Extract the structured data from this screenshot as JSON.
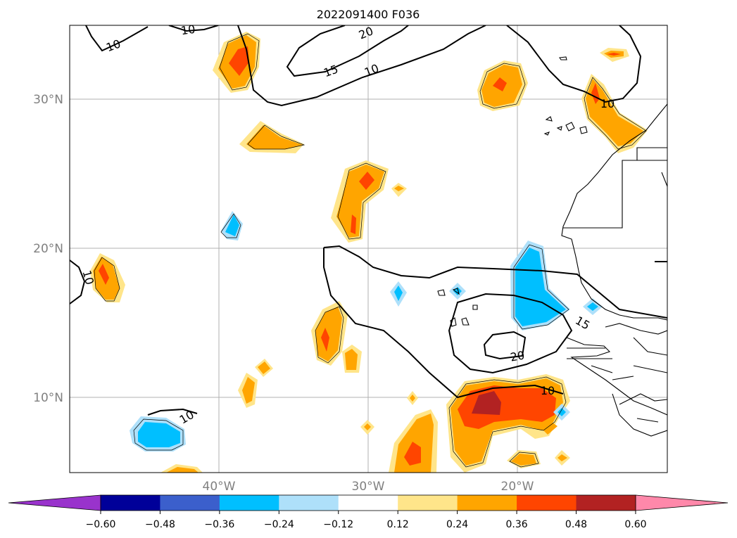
{
  "title": "2022091400 F036",
  "map": {
    "lon_ticks": [
      "40°W",
      "30°W",
      "20°W"
    ],
    "lat_ticks": [
      "30°N",
      "20°N",
      "10°N"
    ],
    "contour_labels": [
      "10",
      "10",
      "20",
      "15",
      "10",
      "10",
      "10",
      "15",
      "20",
      "10",
      "10"
    ]
  },
  "colorbar": {
    "colors": [
      "#9933cc",
      "#000099",
      "#3b5fcc",
      "#00bfff",
      "#aee0fa",
      "#ffffff",
      "#ffe58a",
      "#ffa500",
      "#ff4500",
      "#b22222",
      "#ff88aa"
    ],
    "tick_labels": [
      "−0.60",
      "−0.48",
      "−0.36",
      "−0.24",
      "−0.12",
      "0.12",
      "0.24",
      "0.36",
      "0.48",
      "0.60"
    ]
  }
}
